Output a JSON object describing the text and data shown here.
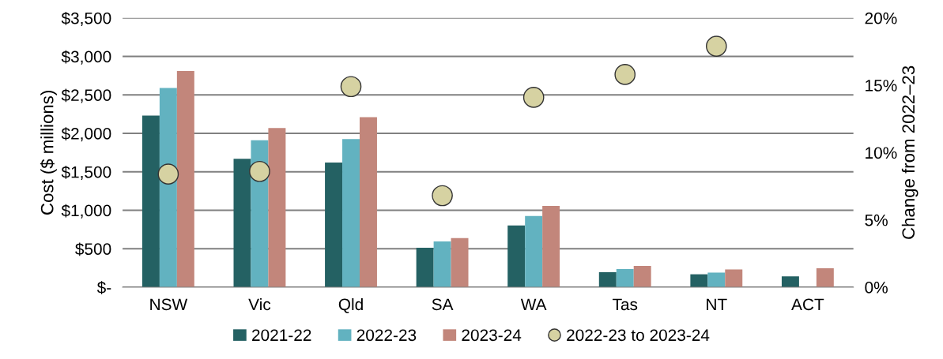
{
  "chart_data": {
    "type": "bar",
    "ylabel": "Cost ($ millions)",
    "y2label": "Change from 2022–23",
    "categories": [
      "NSW",
      "Vic",
      "Qld",
      "SA",
      "WA",
      "Tas",
      "NT",
      "ACT"
    ],
    "series": [
      {
        "name": "2021-22",
        "color": "#246163",
        "values": [
          2230,
          1670,
          1620,
          513,
          802,
          195,
          168,
          141
        ]
      },
      {
        "name": "2022-23",
        "color": "#62b2c0",
        "values": [
          2590,
          1910,
          1925,
          596,
          925,
          236,
          190,
          null
        ]
      },
      {
        "name": "2023-24",
        "color": "#c2867b",
        "values": [
          2810,
          2070,
          2210,
          639,
          1056,
          277,
          231,
          245
        ]
      },
      {
        "name": "2022-23 to 2023-24",
        "type": "scatter",
        "axis": "y2",
        "color": "#d6d2a2",
        "marker": "circle",
        "values": [
          8.4,
          8.6,
          14.9,
          6.8,
          14.1,
          15.8,
          17.9,
          null
        ]
      }
    ],
    "ylim": [
      0,
      3500
    ],
    "yticks": [
      {
        "value": 0,
        "label": "$-"
      },
      {
        "value": 500,
        "label": "$500"
      },
      {
        "value": 1000,
        "label": "$1,000"
      },
      {
        "value": 1500,
        "label": "$1,500"
      },
      {
        "value": 2000,
        "label": "$2,000"
      },
      {
        "value": 2500,
        "label": "$2,500"
      },
      {
        "value": 3000,
        "label": "$3,000"
      },
      {
        "value": 3500,
        "label": "$3,500"
      }
    ],
    "y2lim": [
      0,
      20
    ],
    "y2ticks": [
      {
        "value": 0,
        "label": "0%"
      },
      {
        "value": 5,
        "label": "5%"
      },
      {
        "value": 10,
        "label": "10%"
      },
      {
        "value": 15,
        "label": "15%"
      },
      {
        "value": 20,
        "label": "20%"
      }
    ],
    "grid": "y",
    "legend": "bottom"
  }
}
